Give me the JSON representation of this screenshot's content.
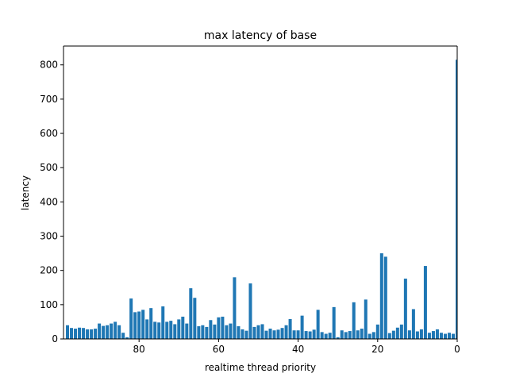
{
  "chart_data": {
    "type": "bar",
    "title": "max latency of base",
    "xlabel": "realtime thread priority",
    "ylabel": "latency",
    "x_inverted": true,
    "xlim": [
      99,
      0
    ],
    "ylim": [
      0,
      855
    ],
    "x_ticks": [
      80,
      60,
      40,
      20,
      0
    ],
    "y_ticks": [
      0,
      100,
      200,
      300,
      400,
      500,
      600,
      700,
      800
    ],
    "color": "#1f77b4",
    "grid": false,
    "x": [
      98,
      97,
      96,
      95,
      94,
      93,
      92,
      91,
      90,
      89,
      88,
      87,
      86,
      85,
      84,
      83,
      82,
      81,
      80,
      79,
      78,
      77,
      76,
      75,
      74,
      73,
      72,
      71,
      70,
      69,
      68,
      67,
      66,
      65,
      64,
      63,
      62,
      61,
      60,
      59,
      58,
      57,
      56,
      55,
      54,
      53,
      52,
      51,
      50,
      49,
      48,
      47,
      46,
      45,
      44,
      43,
      42,
      41,
      40,
      39,
      38,
      37,
      36,
      35,
      34,
      33,
      32,
      31,
      30,
      29,
      28,
      27,
      26,
      25,
      24,
      23,
      22,
      21,
      20,
      19,
      18,
      17,
      16,
      15,
      14,
      13,
      12,
      11,
      10,
      9,
      8,
      7,
      6,
      5,
      4,
      3,
      2,
      1,
      0
    ],
    "values": [
      40,
      32,
      30,
      33,
      32,
      28,
      28,
      30,
      45,
      38,
      40,
      45,
      50,
      40,
      18,
      5,
      118,
      78,
      80,
      85,
      57,
      90,
      50,
      48,
      95,
      50,
      53,
      43,
      57,
      65,
      45,
      148,
      120,
      37,
      40,
      35,
      55,
      42,
      63,
      65,
      40,
      45,
      180,
      37,
      28,
      24,
      162,
      35,
      40,
      43,
      24,
      30,
      25,
      27,
      32,
      40,
      58,
      25,
      25,
      68,
      23,
      22,
      27,
      85,
      20,
      15,
      18,
      93,
      5,
      25,
      20,
      23,
      107,
      25,
      30,
      115,
      15,
      20,
      42,
      250,
      240,
      17,
      24,
      33,
      42,
      176,
      25,
      87,
      22,
      28,
      213,
      18,
      23,
      28,
      18,
      15,
      18,
      15,
      815
    ]
  }
}
